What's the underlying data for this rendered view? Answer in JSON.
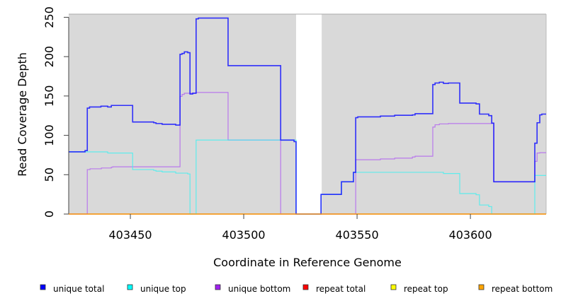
{
  "chart_data": {
    "type": "line",
    "step": true,
    "title": "",
    "xlabel": "Coordinate in Reference Genome",
    "ylabel": "Read Coverage Depth",
    "xlim": [
      403422.8,
      403633.4
    ],
    "ylim": [
      0,
      254
    ],
    "xticks": [
      403450,
      403500,
      403550,
      403600
    ],
    "xtick_labels": [
      "403450",
      "403500",
      "403550",
      "403600"
    ],
    "yticks": [
      0,
      50,
      100,
      150,
      200,
      250
    ],
    "ytick_labels": [
      "0",
      "50",
      "100",
      "150",
      "200",
      "250"
    ],
    "shaded_regions": [
      [
        403422.8,
        403523.1
      ],
      [
        403534.4,
        403633.4
      ]
    ],
    "shade_color": "#d9d9d9",
    "legend_placement": "bottom",
    "series": [
      {
        "name": "unique total",
        "color": "#0000ff",
        "line_color": "#1010ff",
        "opacity": 0.85,
        "points": [
          [
            403422.8,
            79
          ],
          [
            403430,
            80.6
          ],
          [
            403431,
            134.6
          ],
          [
            403432,
            136
          ],
          [
            403437,
            137
          ],
          [
            403440,
            136
          ],
          [
            403441.6,
            138
          ],
          [
            403451,
            117
          ],
          [
            403460.3,
            116
          ],
          [
            403461.3,
            115
          ],
          [
            403464,
            114
          ],
          [
            403470,
            113
          ],
          [
            403471.9,
            203
          ],
          [
            403472.8,
            204
          ],
          [
            403473.8,
            206
          ],
          [
            403475.3,
            205
          ],
          [
            403476.3,
            152.5
          ],
          [
            403477.5,
            153.5
          ],
          [
            403479,
            248
          ],
          [
            403480,
            249
          ],
          [
            403493.1,
            188.5
          ],
          [
            403516.3,
            94
          ],
          [
            403522.2,
            92
          ],
          [
            403523.1,
            0
          ],
          [
            403534.1,
            25
          ],
          [
            403543.1,
            41
          ],
          [
            403548.4,
            53
          ],
          [
            403549.4,
            122.5
          ],
          [
            403550.3,
            123.5
          ],
          [
            403560.3,
            124.5
          ],
          [
            403566.6,
            125.5
          ],
          [
            403574.4,
            126
          ],
          [
            403575.6,
            127.5
          ],
          [
            403583.4,
            164.5
          ],
          [
            403584.4,
            166.5
          ],
          [
            403586.3,
            167.5
          ],
          [
            403588.1,
            166
          ],
          [
            403590.3,
            166.5
          ],
          [
            403595.3,
            141
          ],
          [
            403602.5,
            140
          ],
          [
            403604,
            127
          ],
          [
            403608.1,
            125
          ],
          [
            403609.4,
            115.5
          ],
          [
            403610.3,
            41
          ],
          [
            403628.4,
            90
          ],
          [
            403629.4,
            116
          ],
          [
            403630.6,
            126
          ],
          [
            403631.5,
            127
          ]
        ]
      },
      {
        "name": "unique top",
        "color": "#00ffff",
        "line_color": "#40f0f0",
        "opacity": 0.8,
        "points": [
          [
            403422.8,
            79
          ],
          [
            403440,
            77.5
          ],
          [
            403451,
            56.5
          ],
          [
            403460.3,
            55.5
          ],
          [
            403461.3,
            54.5
          ],
          [
            403464,
            53.5
          ],
          [
            403470,
            52
          ],
          [
            403475.3,
            51
          ],
          [
            403476.3,
            0
          ],
          [
            403479,
            94
          ],
          [
            403523.1,
            0
          ],
          [
            403534.1,
            25
          ],
          [
            403543.1,
            41
          ],
          [
            403548.4,
            53
          ],
          [
            403588.1,
            51.5
          ],
          [
            403595.3,
            26
          ],
          [
            403602.5,
            24.5
          ],
          [
            403604,
            11.5
          ],
          [
            403608.1,
            9.5
          ],
          [
            403609.4,
            0
          ],
          [
            403628.4,
            49
          ]
        ]
      },
      {
        "name": "unique bottom",
        "color": "#a020f0",
        "line_color": "#b060f0",
        "opacity": 0.8,
        "points": [
          [
            403422.8,
            0
          ],
          [
            403431,
            56.5
          ],
          [
            403432.2,
            57.5
          ],
          [
            403437.2,
            58.5
          ],
          [
            403441.6,
            59.5
          ],
          [
            403442.2,
            60
          ],
          [
            403471.9,
            149.5
          ],
          [
            403472.8,
            152
          ],
          [
            403473.8,
            153.5
          ],
          [
            403479,
            154.5
          ],
          [
            403493.1,
            94
          ],
          [
            403516.3,
            0
          ],
          [
            403549.4,
            69
          ],
          [
            403560.3,
            70
          ],
          [
            403566.6,
            71
          ],
          [
            403574.4,
            72.5
          ],
          [
            403575.6,
            73.5
          ],
          [
            403583.4,
            110.5
          ],
          [
            403584.4,
            113.5
          ],
          [
            403586.3,
            114.5
          ],
          [
            403590.3,
            115
          ],
          [
            403609.4,
            115.5
          ],
          [
            403610.3,
            41
          ],
          [
            403628.4,
            67
          ],
          [
            403629.4,
            77.5
          ],
          [
            403630.6,
            78
          ]
        ]
      },
      {
        "name": "repeat total",
        "color": "#ff0000",
        "line_color": "#ff0000",
        "opacity": 0.5,
        "points": [
          [
            403422.8,
            0
          ]
        ]
      },
      {
        "name": "repeat top",
        "color": "#ffff00",
        "line_color": "#ffff00",
        "opacity": 0.5,
        "points": [
          [
            403422.8,
            0
          ]
        ]
      },
      {
        "name": "repeat bottom",
        "color": "#ffa500",
        "line_color": "#ffa500",
        "opacity": 0.9,
        "points": [
          [
            403422.8,
            0
          ]
        ]
      }
    ]
  }
}
